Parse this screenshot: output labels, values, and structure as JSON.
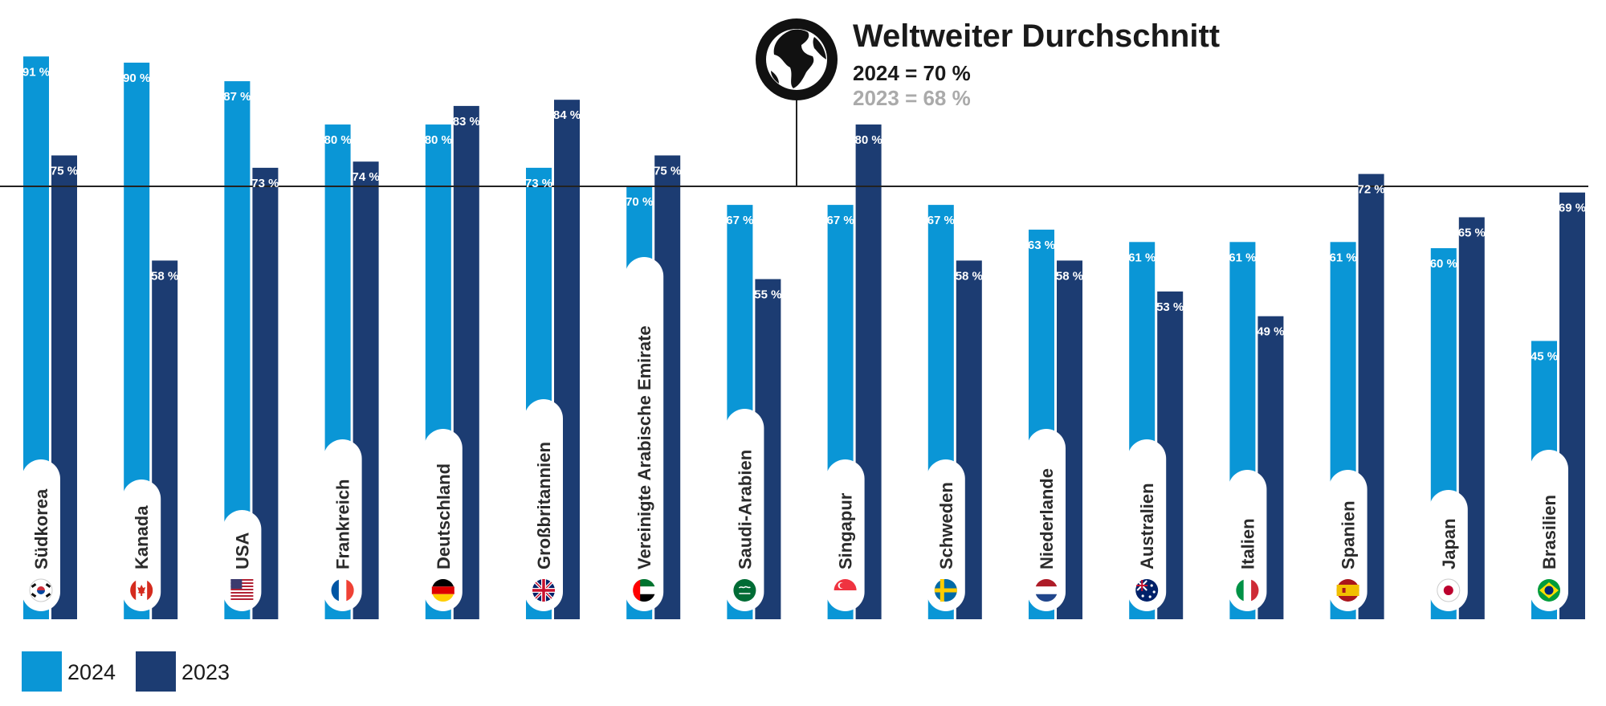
{
  "chart_data": {
    "type": "bar",
    "categories": [
      "Südkorea",
      "Kanada",
      "USA",
      "Frankreich",
      "Deutschland",
      "Großbritannien",
      "Vereinigte Arabische Emirate",
      "Saudi-Arabien",
      "Singapur",
      "Schweden",
      "Niederlande",
      "Australien",
      "Italien",
      "Spanien",
      "Japan",
      "Brasilien"
    ],
    "series": [
      {
        "name": "2024",
        "color": "#0a96d6",
        "values": [
          91,
          90,
          87,
          80,
          80,
          73,
          70,
          67,
          67,
          67,
          63,
          61,
          61,
          61,
          60,
          45
        ]
      },
      {
        "name": "2023",
        "color": "#1c3c72",
        "values": [
          75,
          58,
          73,
          74,
          83,
          84,
          75,
          55,
          80,
          58,
          58,
          53,
          49,
          72,
          65,
          69
        ]
      }
    ],
    "value_labels": {
      "2024": [
        "91 %",
        "90 %",
        "87 %",
        "80 %",
        "80 %",
        "73 %",
        "70 %",
        "67 %",
        "67 %",
        "67 %",
        "63 %",
        "61 %",
        "61 %",
        "61 %",
        "60 %",
        "45 %"
      ],
      "2023": [
        "75 %",
        "58 %",
        "73 %",
        "74 %",
        "83 %",
        "84 %",
        "75 %",
        "55 %",
        "80 %",
        "58 %",
        "58 %",
        "53 %",
        "49 %",
        "72 %",
        "65 %",
        "69 %"
      ]
    },
    "flag_icons": [
      "south-korea-flag-icon",
      "canada-flag-icon",
      "usa-flag-icon",
      "france-flag-icon",
      "germany-flag-icon",
      "uk-flag-icon",
      "uae-flag-icon",
      "saudi-arabia-flag-icon",
      "singapore-flag-icon",
      "sweden-flag-icon",
      "netherlands-flag-icon",
      "australia-flag-icon",
      "italy-flag-icon",
      "spain-flag-icon",
      "japan-flag-icon",
      "brazil-flag-icon"
    ],
    "ylim": [
      0,
      100
    ],
    "grid": false,
    "reference_line": {
      "value": 70
    },
    "legend": {
      "position": "bottom-left",
      "entries": [
        "2024",
        "2023"
      ]
    }
  },
  "average": {
    "title": "Weltweiter Durchschnitt",
    "line_2024": "2024 = 70 %",
    "line_2023": "2023 = 68 %",
    "icon": "globe-icon"
  }
}
